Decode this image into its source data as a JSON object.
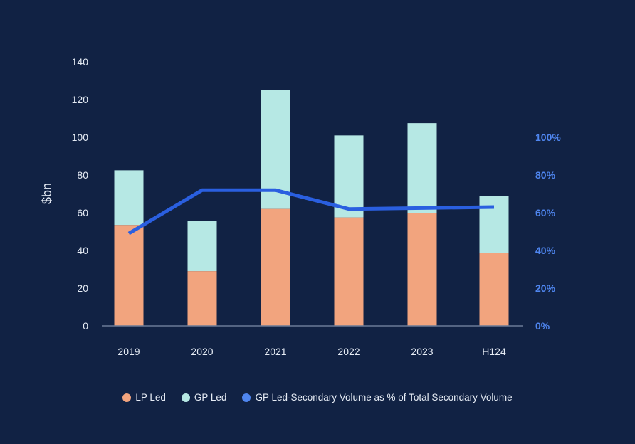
{
  "chart_data": {
    "type": "bar",
    "stacked": true,
    "categories": [
      "2019",
      "2020",
      "2021",
      "2022",
      "2023",
      "H124"
    ],
    "ylabel": "$bn",
    "ylim": [
      0,
      140
    ],
    "yticks": [
      "0",
      "20",
      "40",
      "60",
      "80",
      "100",
      "120",
      "140"
    ],
    "y2lim": [
      0,
      100
    ],
    "y2ticks": [
      "0%",
      "20%",
      "40%",
      "60%",
      "80%",
      "100%"
    ],
    "series": [
      {
        "name": "LP Led",
        "type": "bar",
        "color": "#f2a47e",
        "values": [
          53.5,
          29,
          62,
          57.5,
          60,
          38.5
        ]
      },
      {
        "name": "GP Led",
        "type": "bar",
        "color": "#b6e8e4",
        "values": [
          29,
          26.5,
          63,
          43.5,
          47.5,
          30.5
        ]
      },
      {
        "name": "GP Led-Secondary Volume as % of Total Secondary Volume",
        "type": "line",
        "axis": "right",
        "color": "#2a5fe0",
        "values": [
          49,
          72,
          72,
          62,
          62.5,
          63
        ]
      }
    ],
    "grid": false,
    "legend_position": "bottom"
  },
  "colors": {
    "background": "#112244",
    "axis_line": "#6b7a96",
    "left_tick_text": "#e6ecf5",
    "right_tick_text": "#4f86f0",
    "line_legend_dot": "#4f86f0"
  }
}
